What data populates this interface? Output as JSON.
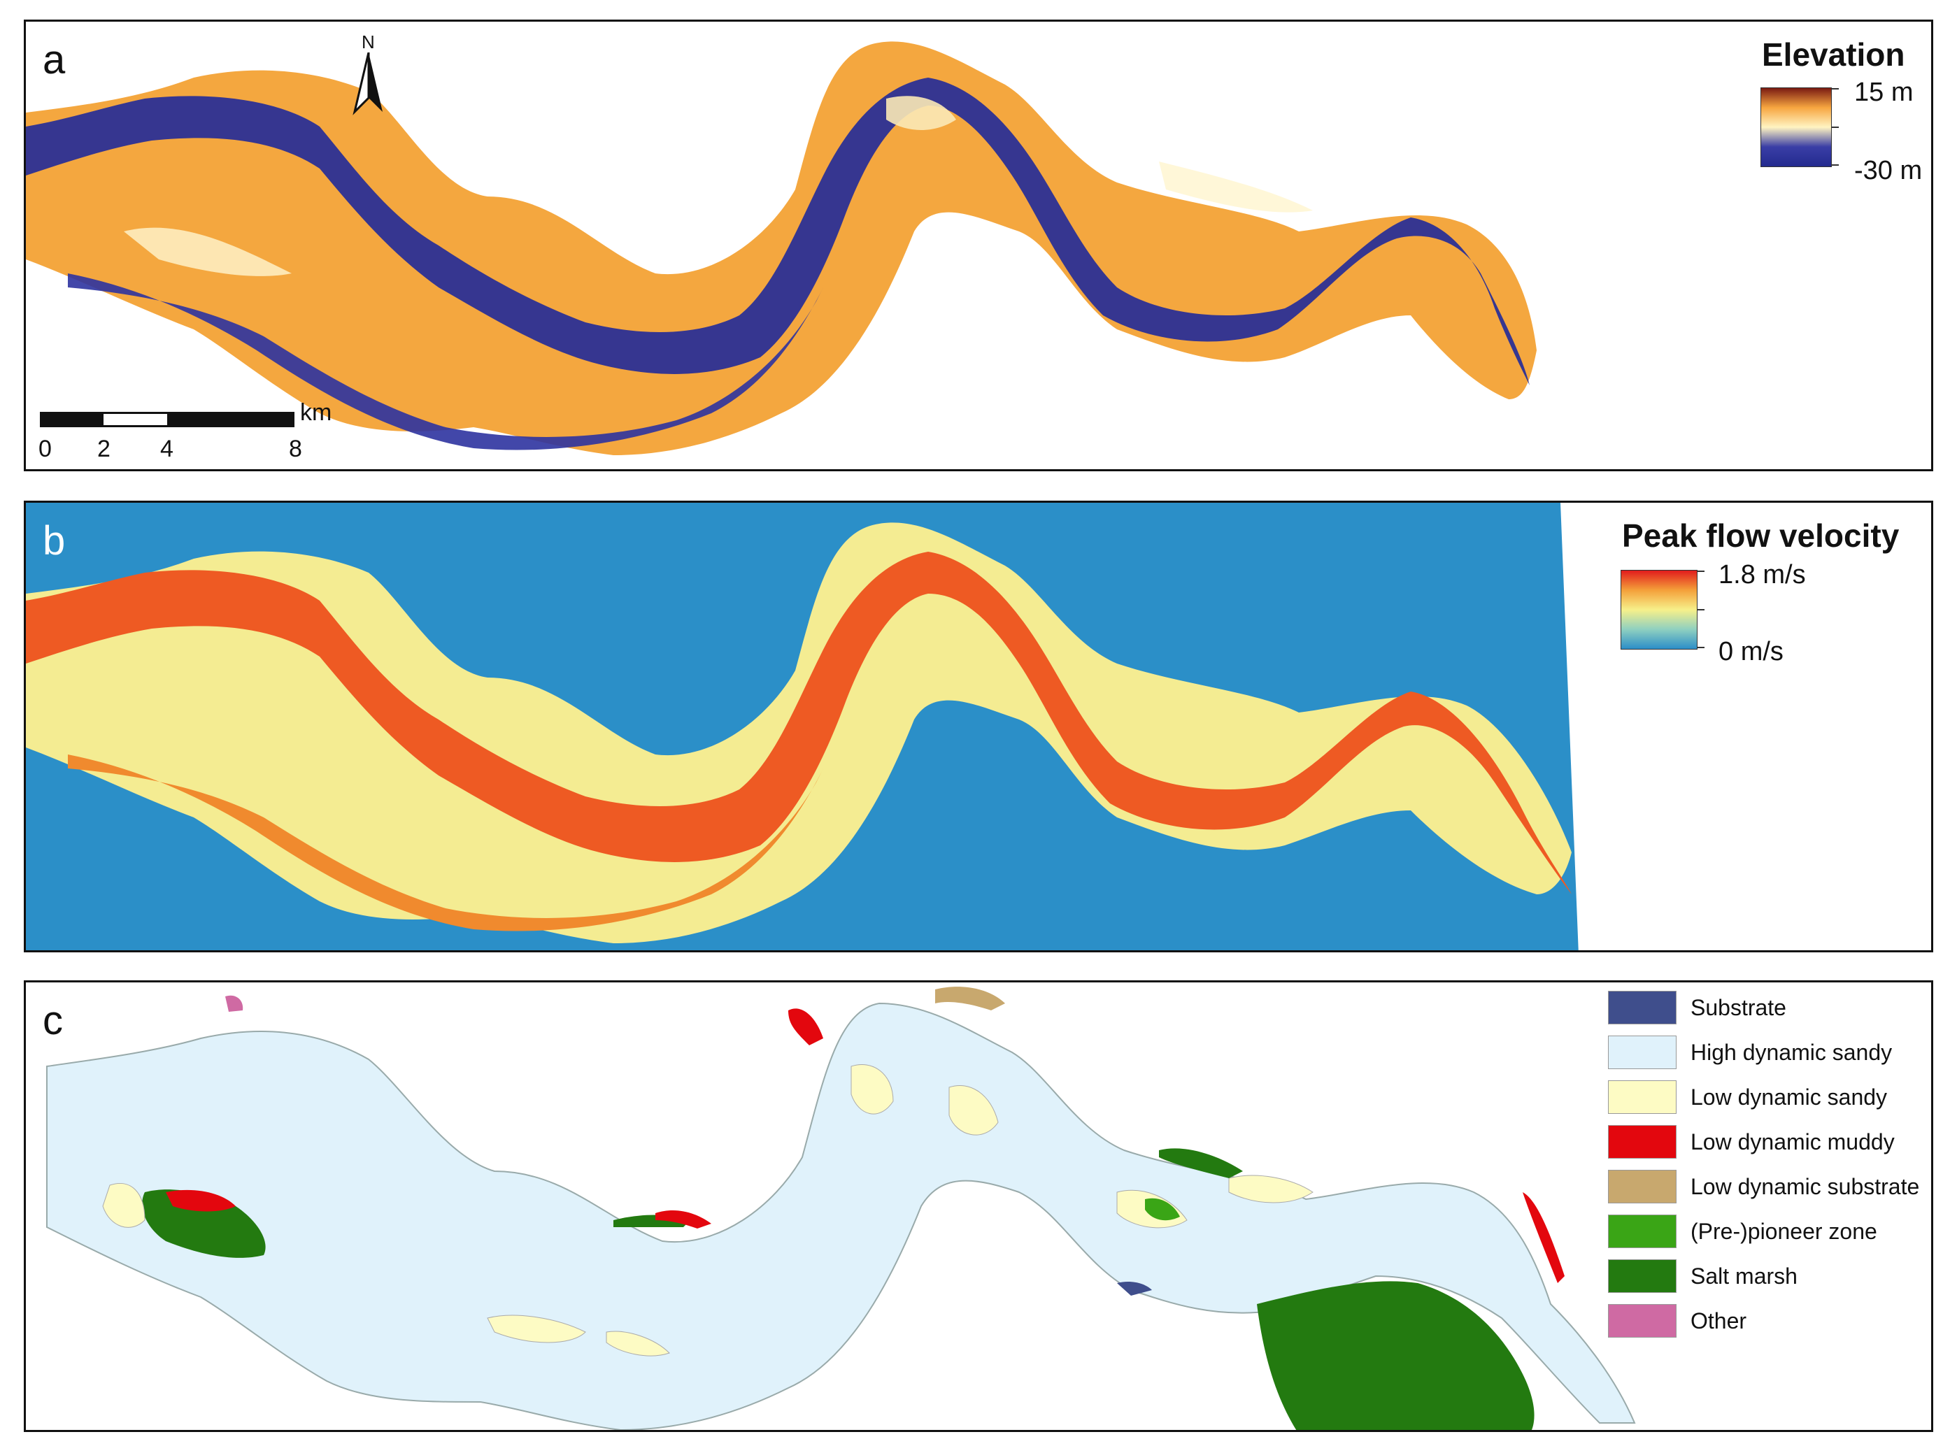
{
  "panels": {
    "a": {
      "letter": "a",
      "legend_title": "Elevation",
      "max_label": "15 m",
      "min_label": "-30 m",
      "ramp_colors": [
        "#7a1a12",
        "#f7a640",
        "#fff4c2",
        "#3a3ea6",
        "#232a8e"
      ],
      "north_label": "N",
      "scale_unit": "km",
      "scale_ticks": [
        "0",
        "2",
        "4",
        "8"
      ]
    },
    "b": {
      "letter": "b",
      "legend_title": "Peak flow velocity",
      "max_label": "1.8 m/s",
      "min_label": "0 m/s",
      "ramp_colors": [
        "#e11c1c",
        "#f4a03a",
        "#f7f08a",
        "#8fd0c0",
        "#2c8ec8"
      ]
    },
    "c": {
      "letter": "c",
      "classes": [
        {
          "label": "Substrate",
          "color": "#3f4e8c"
        },
        {
          "label": "High dynamic sandy",
          "color": "#e0f2fb"
        },
        {
          "label": "Low dynamic sandy",
          "color": "#fdfbc4"
        },
        {
          "label": "Low dynamic muddy",
          "color": "#e3070e"
        },
        {
          "label": "Low dynamic substrate",
          "color": "#c8a86e"
        },
        {
          "label": "(Pre-)pioneer zone",
          "color": "#3aa516"
        },
        {
          "label": "Salt marsh",
          "color": "#237a10"
        },
        {
          "label": "Other",
          "color": "#cf6aa3"
        }
      ]
    }
  }
}
